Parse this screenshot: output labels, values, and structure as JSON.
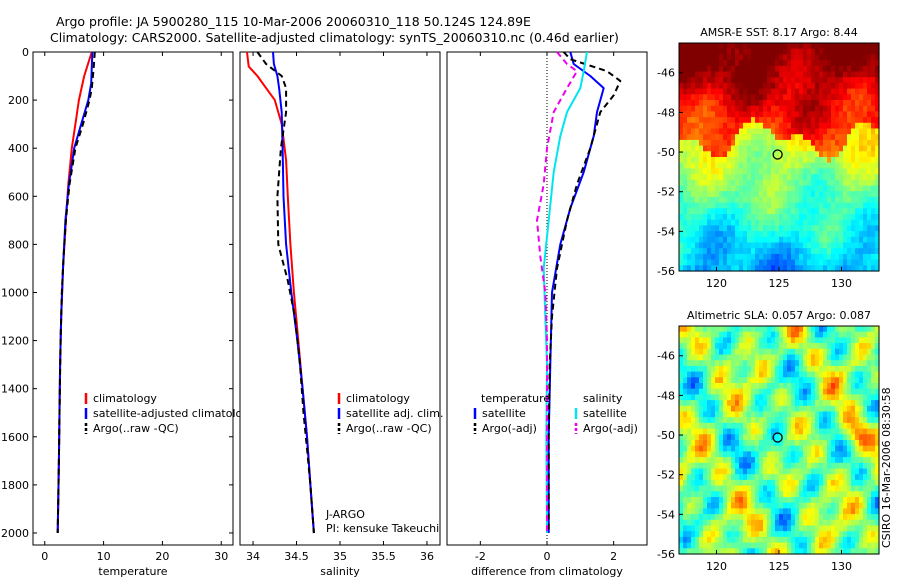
{
  "header": {
    "line1": "Argo profile: JA 5900280_115 10-Mar-2006 20060310_118 50.124S 124.89E",
    "line2": "Climatology: CARS2000. Satellite-adjusted climatology: synTS_20060310.nc (0.46d earlier)"
  },
  "colors": {
    "climatology": "#ff0000",
    "satellite": "#0000ff",
    "argo": "#000000",
    "satellite_salinity": "#00e5ee",
    "argo_salinity": "#ee00ee"
  },
  "side_text": "CSIRO 16-Mar-2006 08:30:58",
  "chart_data": [
    {
      "id": "temperature",
      "type": "line",
      "xlabel": "temperature",
      "xlim": [
        -2,
        32
      ],
      "ylim": [
        2050,
        0
      ],
      "y_reversed": true,
      "xticks": [
        0,
        10,
        20,
        30
      ],
      "yticks": [
        0,
        200,
        400,
        600,
        800,
        1000,
        1200,
        1400,
        1600,
        1800,
        2000
      ],
      "legend": {
        "position": "lower-right",
        "entries": [
          {
            "label": "climatology",
            "color": "#ff0000"
          },
          {
            "label": "satellite-adjusted climatology",
            "color": "#0000ff"
          },
          {
            "label": "Argo(..raw -QC)",
            "color": "#000000",
            "dashed": true
          }
        ]
      },
      "series": [
        {
          "name": "climatology",
          "color": "#ff0000",
          "dashed": false,
          "points": [
            [
              8.0,
              0
            ],
            [
              7.6,
              30
            ],
            [
              6.7,
              100
            ],
            [
              5.8,
              200
            ],
            [
              5.2,
              300
            ],
            [
              4.6,
              400
            ],
            [
              4.0,
              550
            ],
            [
              3.6,
              700
            ],
            [
              3.1,
              900
            ],
            [
              2.8,
              1100
            ],
            [
              2.6,
              1300
            ],
            [
              2.5,
              1500
            ],
            [
              2.4,
              1700
            ],
            [
              2.3,
              1850
            ],
            [
              2.2,
              2000
            ]
          ]
        },
        {
          "name": "satellite-adjusted climatology",
          "color": "#0000ff",
          "dashed": false,
          "points": [
            [
              8.1,
              0
            ],
            [
              8.0,
              60
            ],
            [
              7.9,
              130
            ],
            [
              7.4,
              200
            ],
            [
              6.2,
              300
            ],
            [
              5.0,
              400
            ],
            [
              4.1,
              550
            ],
            [
              3.5,
              700
            ],
            [
              3.1,
              900
            ],
            [
              2.8,
              1100
            ],
            [
              2.6,
              1300
            ],
            [
              2.5,
              1500
            ],
            [
              2.4,
              1700
            ],
            [
              2.3,
              1850
            ],
            [
              2.2,
              2000
            ]
          ]
        },
        {
          "name": "Argo(..raw -QC)",
          "color": "#000000",
          "dashed": true,
          "points": [
            [
              8.5,
              0
            ],
            [
              8.3,
              70
            ],
            [
              8.0,
              150
            ],
            [
              7.6,
              200
            ],
            [
              6.5,
              300
            ],
            [
              5.2,
              400
            ],
            [
              4.2,
              550
            ],
            [
              3.6,
              700
            ],
            [
              3.2,
              850
            ],
            [
              2.9,
              1000
            ],
            [
              2.7,
              1200
            ],
            [
              2.5,
              1500
            ],
            [
              2.4,
              1700
            ],
            [
              2.3,
              1850
            ],
            [
              2.2,
              2000
            ]
          ]
        }
      ]
    },
    {
      "id": "salinity",
      "type": "line",
      "xlabel": "salinity",
      "xlim": [
        33.85,
        36.15
      ],
      "ylim": [
        2050,
        0
      ],
      "y_reversed": true,
      "xticks": [
        34,
        34.5,
        35,
        35.5,
        36
      ],
      "legend": {
        "position": "lower-right",
        "entries": [
          {
            "label": "climatology",
            "color": "#ff0000"
          },
          {
            "label": "satellite adj. clim.",
            "color": "#0000ff"
          },
          {
            "label": "Argo(..raw -QC)",
            "color": "#000000",
            "dashed": true
          }
        ]
      },
      "annotation": {
        "line1": "J-ARGO",
        "line2": "PI: kensuke Takeuchi"
      },
      "series": [
        {
          "name": "climatology",
          "color": "#ff0000",
          "dashed": false,
          "points": [
            [
              33.93,
              0
            ],
            [
              33.95,
              60
            ],
            [
              34.05,
              100
            ],
            [
              34.15,
              150
            ],
            [
              34.25,
              200
            ],
            [
              34.33,
              300
            ],
            [
              34.38,
              450
            ],
            [
              34.4,
              600
            ],
            [
              34.43,
              800
            ],
            [
              34.47,
              1000
            ],
            [
              34.52,
              1200
            ],
            [
              34.57,
              1400
            ],
            [
              34.62,
              1600
            ],
            [
              34.66,
              1800
            ],
            [
              34.7,
              2000
            ]
          ]
        },
        {
          "name": "satellite adj. clim.",
          "color": "#0000ff",
          "dashed": false,
          "points": [
            [
              34.23,
              0
            ],
            [
              34.24,
              50
            ],
            [
              34.28,
              100
            ],
            [
              34.3,
              150
            ],
            [
              34.33,
              250
            ],
            [
              34.34,
              400
            ],
            [
              34.35,
              600
            ],
            [
              34.38,
              800
            ],
            [
              34.44,
              1000
            ],
            [
              34.51,
              1200
            ],
            [
              34.57,
              1400
            ],
            [
              34.62,
              1600
            ],
            [
              34.66,
              1800
            ],
            [
              34.7,
              2000
            ]
          ]
        },
        {
          "name": "Argo(..raw -QC)",
          "color": "#000000",
          "dashed": true,
          "points": [
            [
              34.05,
              0
            ],
            [
              34.15,
              50
            ],
            [
              34.33,
              100
            ],
            [
              34.38,
              150
            ],
            [
              34.38,
              250
            ],
            [
              34.32,
              400
            ],
            [
              34.28,
              600
            ],
            [
              34.29,
              800
            ],
            [
              34.4,
              950
            ],
            [
              34.48,
              1100
            ],
            [
              34.54,
              1300
            ],
            [
              34.58,
              1500
            ],
            [
              34.62,
              1650
            ],
            [
              34.66,
              1800
            ],
            [
              34.7,
              2000
            ]
          ]
        }
      ]
    },
    {
      "id": "difference",
      "type": "line",
      "xlabel": "difference from climatology",
      "xlim": [
        -3,
        3
      ],
      "ylim": [
        2050,
        0
      ],
      "y_reversed": true,
      "xticks": [
        -2,
        0,
        2
      ],
      "zero_line": true,
      "legend": {
        "position": "lower",
        "columns": [
          {
            "title": "temperature",
            "entries": [
              {
                "label": "satellite",
                "color": "#0000ff"
              },
              {
                "label": "Argo(-adj)",
                "color": "#000000",
                "dashed": true
              }
            ]
          },
          {
            "title": "salinity",
            "entries": [
              {
                "label": "satellite",
                "color": "#00e5ee"
              },
              {
                "label": "Argo(-adj)",
                "color": "#ee00ee",
                "dashed": true
              }
            ]
          }
        ]
      },
      "series": [
        {
          "name": "temperature satellite",
          "color": "#0000ff",
          "dashed": false,
          "points": [
            [
              0.7,
              0
            ],
            [
              0.8,
              50
            ],
            [
              1.3,
              100
            ],
            [
              1.7,
              150
            ],
            [
              1.5,
              250
            ],
            [
              1.4,
              350
            ],
            [
              1.1,
              500
            ],
            [
              0.7,
              650
            ],
            [
              0.4,
              800
            ],
            [
              0.15,
              1000
            ],
            [
              0.1,
              1300
            ],
            [
              0.05,
              1600
            ],
            [
              0.05,
              2000
            ]
          ]
        },
        {
          "name": "temperature Argo(-adj)",
          "color": "#000000",
          "dashed": true,
          "points": [
            [
              0.5,
              0
            ],
            [
              0.7,
              30
            ],
            [
              1.8,
              80
            ],
            [
              2.2,
              120
            ],
            [
              2.0,
              180
            ],
            [
              1.6,
              250
            ],
            [
              1.3,
              400
            ],
            [
              0.9,
              550
            ],
            [
              0.6,
              700
            ],
            [
              0.3,
              900
            ],
            [
              0.15,
              1100
            ],
            [
              0.08,
              1300
            ],
            [
              0.05,
              1600
            ],
            [
              0.05,
              2000
            ]
          ]
        },
        {
          "name": "salinity satellite",
          "color": "#00e5ee",
          "dashed": false,
          "points": [
            [
              1.2,
              0
            ],
            [
              1.1,
              80
            ],
            [
              1.0,
              150
            ],
            [
              0.6,
              250
            ],
            [
              0.4,
              350
            ],
            [
              0.2,
              500
            ],
            [
              0.05,
              700
            ],
            [
              -0.1,
              900
            ],
            [
              -0.05,
              1100
            ],
            [
              0.0,
              1300
            ],
            [
              -0.02,
              1600
            ],
            [
              0.0,
              2000
            ]
          ]
        },
        {
          "name": "salinity Argo(-adj)",
          "color": "#ee00ee",
          "dashed": true,
          "points": [
            [
              0.3,
              0
            ],
            [
              0.6,
              50
            ],
            [
              0.9,
              80
            ],
            [
              0.6,
              150
            ],
            [
              0.2,
              250
            ],
            [
              0.0,
              400
            ],
            [
              -0.1,
              550
            ],
            [
              -0.3,
              700
            ],
            [
              -0.2,
              850
            ],
            [
              -0.05,
              1000
            ],
            [
              0.0,
              1200
            ],
            [
              0.0,
              1600
            ],
            [
              0.0,
              2000
            ]
          ]
        }
      ]
    },
    {
      "id": "sst_map",
      "type": "heatmap",
      "title": "AMSR-E SST: 8.17 Argo: 8.44",
      "xlim": [
        117,
        133
      ],
      "ylim": [
        -56,
        -44.5
      ],
      "xticks": [
        120,
        125,
        130
      ],
      "yticks": [
        -46,
        -48,
        -50,
        -52,
        -54,
        -56
      ],
      "marker": {
        "lon": 124.89,
        "lat": -50.124
      },
      "colormap": "jet"
    },
    {
      "id": "sla_map",
      "type": "heatmap",
      "title": "Altimetric SLA: 0.057 Argo: 0.087",
      "xlim": [
        117,
        133
      ],
      "ylim": [
        -56,
        -44.5
      ],
      "xticks": [
        120,
        125,
        130
      ],
      "yticks": [
        -46,
        -48,
        -50,
        -52,
        -54,
        -56
      ],
      "marker": {
        "lon": 124.89,
        "lat": -50.124
      },
      "colormap": "jet"
    }
  ]
}
